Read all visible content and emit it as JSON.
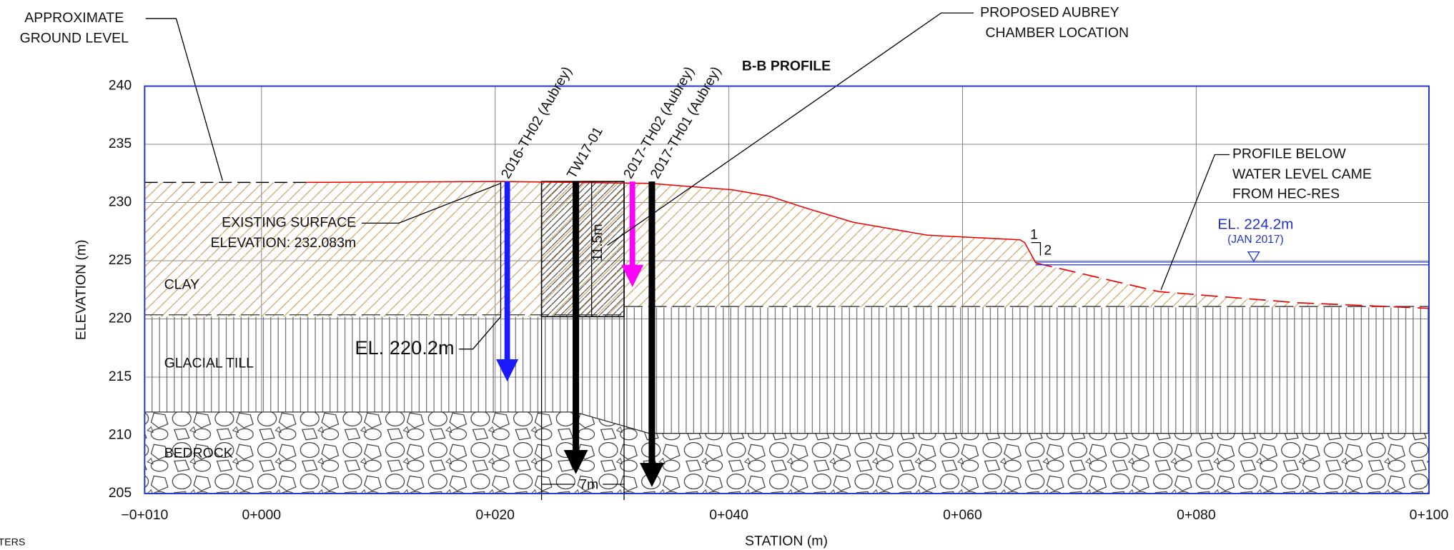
{
  "title": "B-B PROFILE",
  "axes": {
    "y_label": "ELEVATION (m)",
    "x_label": "STATION (m)",
    "y_ticks": [
      "240",
      "235",
      "230",
      "225",
      "220",
      "215",
      "210",
      "205"
    ],
    "x_ticks": [
      "−0+010",
      "0+000",
      "0+020",
      "0+040",
      "0+060",
      "0+080",
      "0+100"
    ]
  },
  "callouts": {
    "ground_level": [
      "APPROXIMATE",
      "GROUND LEVEL"
    ],
    "chamber": [
      "PROPOSED AUBREY",
      "CHAMBER LOCATION"
    ],
    "existing_surface": [
      "EXISTING SURFACE",
      "ELEVATION: 232.083m"
    ],
    "till_top": "EL. 220.2m",
    "profile_note": [
      "PROFILE BELOW",
      "WATER LEVEL CAME",
      "FROM HEC-RES"
    ]
  },
  "strata": [
    "CLAY",
    "GLACIAL TILL",
    "BEDROCK"
  ],
  "boreholes": [
    "2016-TH02 (Aubrey)",
    "TW17-01",
    "2017-TH02 (Aubrey)",
    "2017-TH01 (Aubrey)"
  ],
  "dimensions": {
    "depth": "11.5m",
    "width": "7m"
  },
  "water_level": {
    "elevation": "EL. 224.2m",
    "date": "(JAN 2017)"
  },
  "slope": [
    "1",
    "2"
  ],
  "edge_text": "TERS"
}
